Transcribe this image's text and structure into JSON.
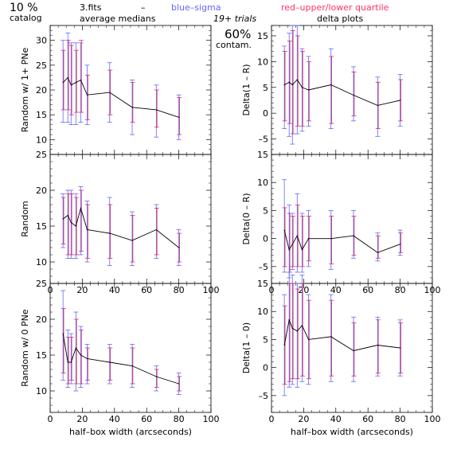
{
  "header": {
    "percent": "10 %",
    "catalog": "catalog",
    "fits": "3.fits",
    "dash": "–",
    "blue_sigma": "blue–sigma",
    "red_quartile": "red–upper/lower quartile",
    "average_medians": "average medians",
    "trials": "19+ trials",
    "delta_plots": "delta plots",
    "contam_pct": "60%",
    "contam": "contam."
  },
  "colors": {
    "sigma": "#6666ff",
    "quartile": "#cc3366",
    "line": "#000000"
  },
  "chart_data": [
    {
      "type": "line",
      "xlabel": "",
      "ylabel": "Random w/ 1+ PNe",
      "xlim": [
        0,
        100
      ],
      "ylim": [
        7,
        33
      ],
      "xticks": [
        0,
        20,
        40,
        60,
        80,
        100
      ],
      "xticklabels": [
        "",
        "",
        "",
        "",
        "",
        ""
      ],
      "yticks": [
        10,
        15,
        20,
        25,
        30
      ],
      "yticklabels": [
        "10",
        "15",
        "20",
        "25",
        "30"
      ],
      "x": [
        8,
        11,
        13,
        16,
        19,
        23,
        37,
        51,
        66,
        80
      ],
      "y": [
        21.5,
        22.5,
        21,
        21.5,
        22,
        19,
        19.5,
        16.5,
        16,
        14.5
      ],
      "sigma_low": [
        13.5,
        13.5,
        13,
        13,
        13.5,
        13,
        13.5,
        11,
        10.5,
        10
      ],
      "sigma_high": [
        30,
        31.5,
        29.5,
        29.5,
        29.5,
        25,
        25.5,
        22,
        21,
        19
      ],
      "q_low": [
        16,
        16,
        15,
        15.5,
        15.5,
        14,
        15,
        13.5,
        12.5,
        11
      ],
      "q_high": [
        28,
        30,
        29,
        28,
        30,
        23,
        24,
        21.5,
        20,
        18.5
      ]
    },
    {
      "type": "line",
      "xlabel": "",
      "ylabel": "Delta(1 – R)",
      "xlim": [
        0,
        100
      ],
      "ylim": [
        -8,
        17
      ],
      "xticks": [
        0,
        20,
        40,
        60,
        80,
        100
      ],
      "xticklabels": [
        "",
        "",
        "",
        "",
        "",
        ""
      ],
      "yticks": [
        -5,
        0,
        5,
        10,
        15
      ],
      "yticklabels": [
        "–5",
        "0",
        "5",
        "10",
        "15"
      ],
      "x": [
        8,
        11,
        13,
        16,
        19,
        23,
        37,
        51,
        66,
        80
      ],
      "y": [
        5.5,
        6,
        5.5,
        6.5,
        5,
        4.5,
        5.5,
        3.5,
        1.5,
        2.5
      ],
      "sigma_low": [
        -3,
        -4.5,
        -6,
        -4,
        -3.5,
        -2.5,
        -3,
        -1.5,
        -4.5,
        -2.5
      ],
      "sigma_high": [
        13,
        15.5,
        17,
        17,
        12.5,
        11,
        12.5,
        9,
        7,
        7.5
      ],
      "q_low": [
        -1.5,
        -2,
        -4,
        -2.5,
        -2.5,
        -1.5,
        -2,
        -0.5,
        -3,
        -1.5
      ],
      "q_high": [
        12,
        14,
        16,
        15,
        12,
        10,
        11,
        8,
        6,
        6.5
      ]
    },
    {
      "type": "line",
      "xlabel": "",
      "ylabel": "Random",
      "xlim": [
        0,
        100
      ],
      "ylim": [
        7,
        25
      ],
      "xticks": [
        0,
        20,
        40,
        60,
        80,
        100
      ],
      "xticklabels": [
        "0",
        "20",
        "40",
        "60",
        "80",
        "100"
      ],
      "yticks": [
        10,
        15,
        20,
        25
      ],
      "yticklabels": [
        "10",
        "15",
        "20",
        "25"
      ],
      "x": [
        8,
        11,
        13,
        16,
        19,
        23,
        37,
        51,
        66,
        80
      ],
      "y": [
        16,
        16.5,
        15.5,
        15,
        17.5,
        14.5,
        14,
        13,
        14.5,
        12
      ],
      "sigma_low": [
        12,
        10.5,
        10.5,
        10.5,
        11,
        10,
        9.5,
        9.5,
        10.5,
        9.5
      ],
      "sigma_high": [
        19.5,
        20,
        20,
        19.5,
        20.5,
        18.5,
        19,
        17,
        18,
        14.5
      ],
      "q_low": [
        12.5,
        11,
        11,
        11,
        11.5,
        10.5,
        10.5,
        10,
        11,
        10
      ],
      "q_high": [
        19,
        19.5,
        19.5,
        19,
        20,
        18,
        18,
        16.5,
        17.5,
        14
      ]
    },
    {
      "type": "line",
      "xlabel": "",
      "ylabel": "Delta(0 – R)",
      "xlim": [
        0,
        100
      ],
      "ylim": [
        -8,
        15
      ],
      "xticks": [
        0,
        20,
        40,
        60,
        80,
        100
      ],
      "xticklabels": [
        "0",
        "20",
        "40",
        "60",
        "80",
        "100"
      ],
      "yticks": [
        -5,
        0,
        5,
        10,
        15
      ],
      "yticklabels": [
        "–5",
        "0",
        "5",
        "10",
        "15"
      ],
      "x": [
        8,
        11,
        13,
        16,
        19,
        23,
        37,
        51,
        66,
        80
      ],
      "y": [
        1.5,
        -2,
        -1,
        0.5,
        -2,
        0,
        0,
        0.5,
        -2.5,
        -1
      ],
      "sigma_low": [
        -6,
        -7,
        -5.5,
        -6,
        -6,
        -5,
        -5.5,
        -3.5,
        -4,
        -3
      ],
      "sigma_high": [
        10.5,
        6,
        4.5,
        8,
        4.5,
        5,
        5,
        5,
        1,
        1.5
      ],
      "q_low": [
        -5,
        -6,
        -5,
        -5,
        -5,
        -4,
        -4.5,
        -3,
        -3.5,
        -2.5
      ],
      "q_high": [
        5.5,
        4.5,
        4,
        6,
        4,
        4,
        4,
        4,
        0.5,
        1
      ]
    },
    {
      "type": "line",
      "xlabel": "half–box width (arcseconds)",
      "ylabel": "Random w/ 0 PNe",
      "xlim": [
        0,
        100
      ],
      "ylim": [
        7,
        25
      ],
      "xticks": [
        0,
        20,
        40,
        60,
        80,
        100
      ],
      "xticklabels": [
        "0",
        "20",
        "40",
        "60",
        "80",
        "100"
      ],
      "yticks": [
        10,
        15,
        20,
        25
      ],
      "yticklabels": [
        "10",
        "15",
        "20",
        "25"
      ],
      "x": [
        8,
        11,
        13,
        16,
        19,
        23,
        37,
        51,
        66,
        80
      ],
      "y": [
        18,
        14,
        14,
        16,
        15,
        14.5,
        14,
        13.5,
        12,
        11
      ],
      "sigma_low": [
        11.5,
        10.5,
        11,
        10,
        10.5,
        11,
        11,
        10.5,
        10,
        9.5
      ],
      "sigma_high": [
        24,
        18.5,
        18,
        21,
        19,
        16.5,
        16.5,
        16.5,
        13.5,
        12.5
      ],
      "q_low": [
        12.5,
        11,
        11.5,
        11,
        11,
        11.5,
        11.5,
        11,
        10.5,
        10
      ],
      "q_high": [
        21.5,
        17.5,
        17.5,
        20,
        18.5,
        16,
        16,
        16,
        13,
        12
      ]
    },
    {
      "type": "line",
      "xlabel": "half–box width (arcseconds)",
      "ylabel": "Delta(1 – 0)",
      "xlim": [
        0,
        100
      ],
      "ylim": [
        -8,
        15
      ],
      "xticks": [
        0,
        20,
        40,
        60,
        80,
        100
      ],
      "xticklabels": [
        "0",
        "20",
        "40",
        "60",
        "80",
        "100"
      ],
      "yticks": [
        -5,
        0,
        5,
        10,
        15
      ],
      "yticklabels": [
        "–5",
        "0",
        "5",
        "10",
        "15"
      ],
      "x": [
        8,
        11,
        13,
        16,
        19,
        23,
        37,
        51,
        66,
        80
      ],
      "y": [
        4,
        8.5,
        7,
        6.5,
        7.5,
        5,
        5.5,
        3,
        4,
        3.5
      ],
      "sigma_low": [
        -5,
        -3.5,
        -3,
        -3.5,
        -2.5,
        -3,
        -2.5,
        -2.5,
        -1.5,
        -1.5
      ],
      "sigma_high": [
        13,
        17,
        16.5,
        15,
        16.5,
        13,
        13,
        9,
        9,
        8.5
      ],
      "q_low": [
        -3,
        -2.5,
        -2,
        -2,
        -1.5,
        -2,
        -1.5,
        -1.5,
        -1,
        -1
      ],
      "q_high": [
        11,
        15,
        15,
        14,
        15,
        12,
        12,
        8,
        8.5,
        8
      ]
    }
  ]
}
